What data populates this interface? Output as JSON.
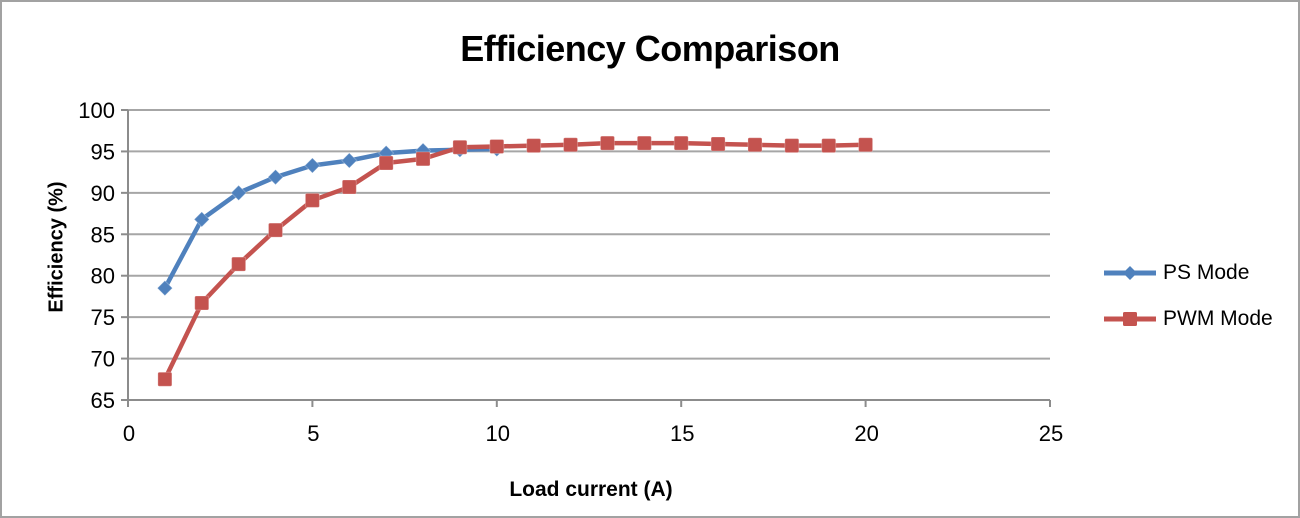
{
  "frame": {
    "border_color": "#A2A2A2",
    "background": "#FFFFFF"
  },
  "chart_data": {
    "type": "line",
    "title": "Efficiency Comparison",
    "xlabel": "Load current (A)",
    "ylabel": "Efficiency (%)",
    "xlim": [
      0,
      25
    ],
    "ylim": [
      65,
      100
    ],
    "x_ticks": [
      0,
      5,
      10,
      15,
      20,
      25
    ],
    "y_ticks": [
      65,
      70,
      75,
      80,
      85,
      90,
      95,
      100
    ],
    "grid": "horizontal",
    "grid_color": "#A6A6A6",
    "axis_color": "#8C8C8C",
    "legend_position": "right",
    "series": [
      {
        "name": "PS Mode",
        "color": "#4F81BD",
        "marker": "diamond",
        "x": [
          1,
          2,
          3,
          4,
          5,
          6,
          7,
          8,
          9,
          10
        ],
        "values": [
          78.5,
          86.8,
          90.0,
          91.9,
          93.3,
          93.9,
          94.8,
          95.1,
          95.2,
          95.3
        ]
      },
      {
        "name": "PWM Mode",
        "color": "#C4534F",
        "marker": "square",
        "x": [
          1,
          2,
          3,
          4,
          5,
          6,
          7,
          8,
          9,
          10,
          11,
          12,
          13,
          14,
          15,
          16,
          17,
          18,
          19,
          20
        ],
        "values": [
          67.5,
          76.7,
          81.4,
          85.5,
          89.1,
          90.7,
          93.6,
          94.1,
          95.5,
          95.6,
          95.7,
          95.8,
          96.0,
          96.0,
          96.0,
          95.9,
          95.8,
          95.7,
          95.7,
          95.8
        ]
      }
    ]
  }
}
